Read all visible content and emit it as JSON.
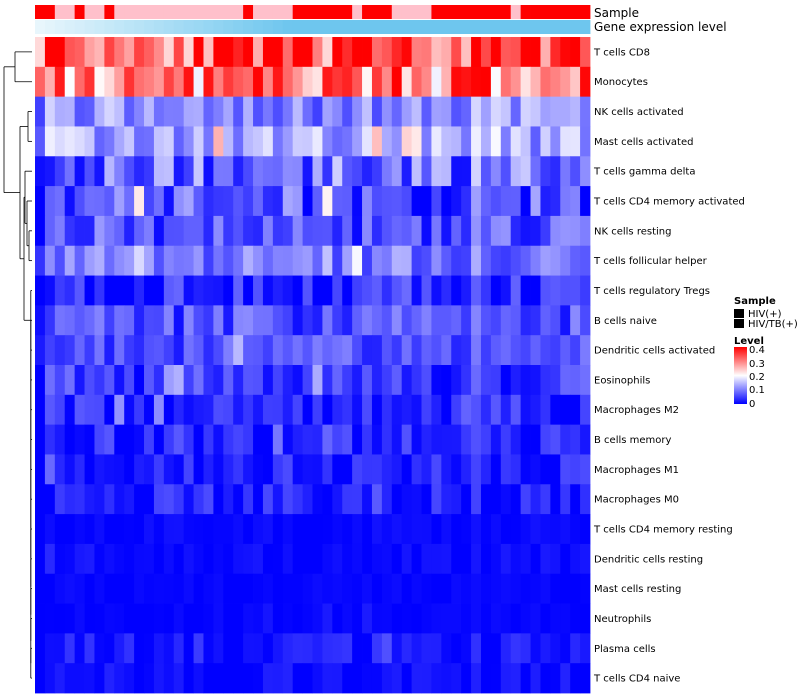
{
  "chart_data": {
    "type": "heatmap",
    "title": "",
    "annotation_tracks": [
      {
        "name": "Sample",
        "label": "Sample"
      },
      {
        "name": "Gene expression level",
        "label": "Gene expression level"
      }
    ],
    "sample_groups": [
      "HIV(+)",
      "HIV(+)",
      "HIV/TB(+)",
      "HIV/TB(+)",
      "HIV(+)",
      "HIV/TB(+)",
      "HIV/TB(+)",
      "HIV(+)",
      "HIV/TB(+)",
      "HIV/TB(+)",
      "HIV/TB(+)",
      "HIV/TB(+)",
      "HIV/TB(+)",
      "HIV/TB(+)",
      "HIV/TB(+)",
      "HIV/TB(+)",
      "HIV/TB(+)",
      "HIV/TB(+)",
      "HIV/TB(+)",
      "HIV/TB(+)",
      "HIV/TB(+)",
      "HIV(+)",
      "HIV/TB(+)",
      "HIV/TB(+)",
      "HIV/TB(+)",
      "HIV/TB(+)",
      "HIV(+)",
      "HIV(+)",
      "HIV(+)",
      "HIV(+)",
      "HIV(+)",
      "HIV(+)",
      "HIV/TB(+)",
      "HIV(+)",
      "HIV(+)",
      "HIV(+)",
      "HIV/TB(+)",
      "HIV/TB(+)",
      "HIV/TB(+)",
      "HIV/TB(+)",
      "HIV(+)",
      "HIV(+)",
      "HIV(+)",
      "HIV(+)",
      "HIV(+)",
      "HIV(+)",
      "HIV(+)",
      "HIV(+)",
      "HIV/TB(+)",
      "HIV(+)",
      "HIV(+)",
      "HIV(+)",
      "HIV(+)",
      "HIV(+)",
      "HIV(+)",
      "HIV(+)"
    ],
    "rows": [
      {
        "name": "T cells CD8",
        "base": 0.33,
        "spread": 0.1,
        "seed": 11
      },
      {
        "name": "Monocytes",
        "base": 0.29,
        "spread": 0.11,
        "seed": 23
      },
      {
        "name": "NK cells activated",
        "base": 0.11,
        "spread": 0.06,
        "seed": 37
      },
      {
        "name": "Mast cells activated",
        "base": 0.13,
        "spread": 0.06,
        "seed": 41
      },
      {
        "name": "T cells gamma delta",
        "base": 0.09,
        "spread": 0.08,
        "seed": 53
      },
      {
        "name": "T cells CD4 memory activated",
        "base": 0.06,
        "spread": 0.07,
        "seed": 67
      },
      {
        "name": "NK cells resting",
        "base": 0.06,
        "spread": 0.06,
        "seed": 71
      },
      {
        "name": "T cells follicular helper",
        "base": 0.09,
        "spread": 0.05,
        "seed": 83
      },
      {
        "name": "T cells regulatory  Tregs",
        "base": 0.03,
        "spread": 0.05,
        "seed": 97
      },
      {
        "name": "B cells naive",
        "base": 0.06,
        "spread": 0.05,
        "seed": 101
      },
      {
        "name": "Dendritic cells activated",
        "base": 0.06,
        "spread": 0.04,
        "seed": 113
      },
      {
        "name": "Eosinophils",
        "base": 0.04,
        "spread": 0.05,
        "seed": 127
      },
      {
        "name": "Macrophages M2",
        "base": 0.03,
        "spread": 0.04,
        "seed": 131
      },
      {
        "name": "B cells memory",
        "base": 0.03,
        "spread": 0.04,
        "seed": 149
      },
      {
        "name": "Macrophages M1",
        "base": 0.02,
        "spread": 0.04,
        "seed": 157
      },
      {
        "name": "Macrophages M0",
        "base": 0.02,
        "spread": 0.04,
        "seed": 163
      },
      {
        "name": "T cells CD4 memory resting",
        "base": 0.005,
        "spread": 0.01,
        "seed": 173
      },
      {
        "name": "Dendritic cells resting",
        "base": 0.005,
        "spread": 0.015,
        "seed": 181
      },
      {
        "name": "Mast cells resting",
        "base": 0.003,
        "spread": 0.008,
        "seed": 191
      },
      {
        "name": "Neutrophils",
        "base": 0.003,
        "spread": 0.008,
        "seed": 199
      },
      {
        "name": "Plasma cells",
        "base": 0.015,
        "spread": 0.03,
        "seed": 211
      },
      {
        "name": "T cells CD4 naive",
        "base": 0.01,
        "spread": 0.02,
        "seed": 223
      }
    ],
    "value_range": [
      0,
      0.4
    ],
    "legend": {
      "sample_title": "Sample",
      "sample_entries": [
        {
          "label": "HIV(+)",
          "color": "#ff0000"
        },
        {
          "label": "HIV/TB(+)",
          "color": "#ffc0cb"
        }
      ],
      "level_title": "Level",
      "level_ticks": [
        "0.4",
        "0.3",
        "0.2",
        "0.1",
        "0"
      ]
    },
    "colors": {
      "low": "#0000ff",
      "mid": "#ffffff",
      "high": "#ff0000",
      "expression_bar": "#6ec6ee",
      "expression_bar_light": "#e8f6fc"
    }
  }
}
